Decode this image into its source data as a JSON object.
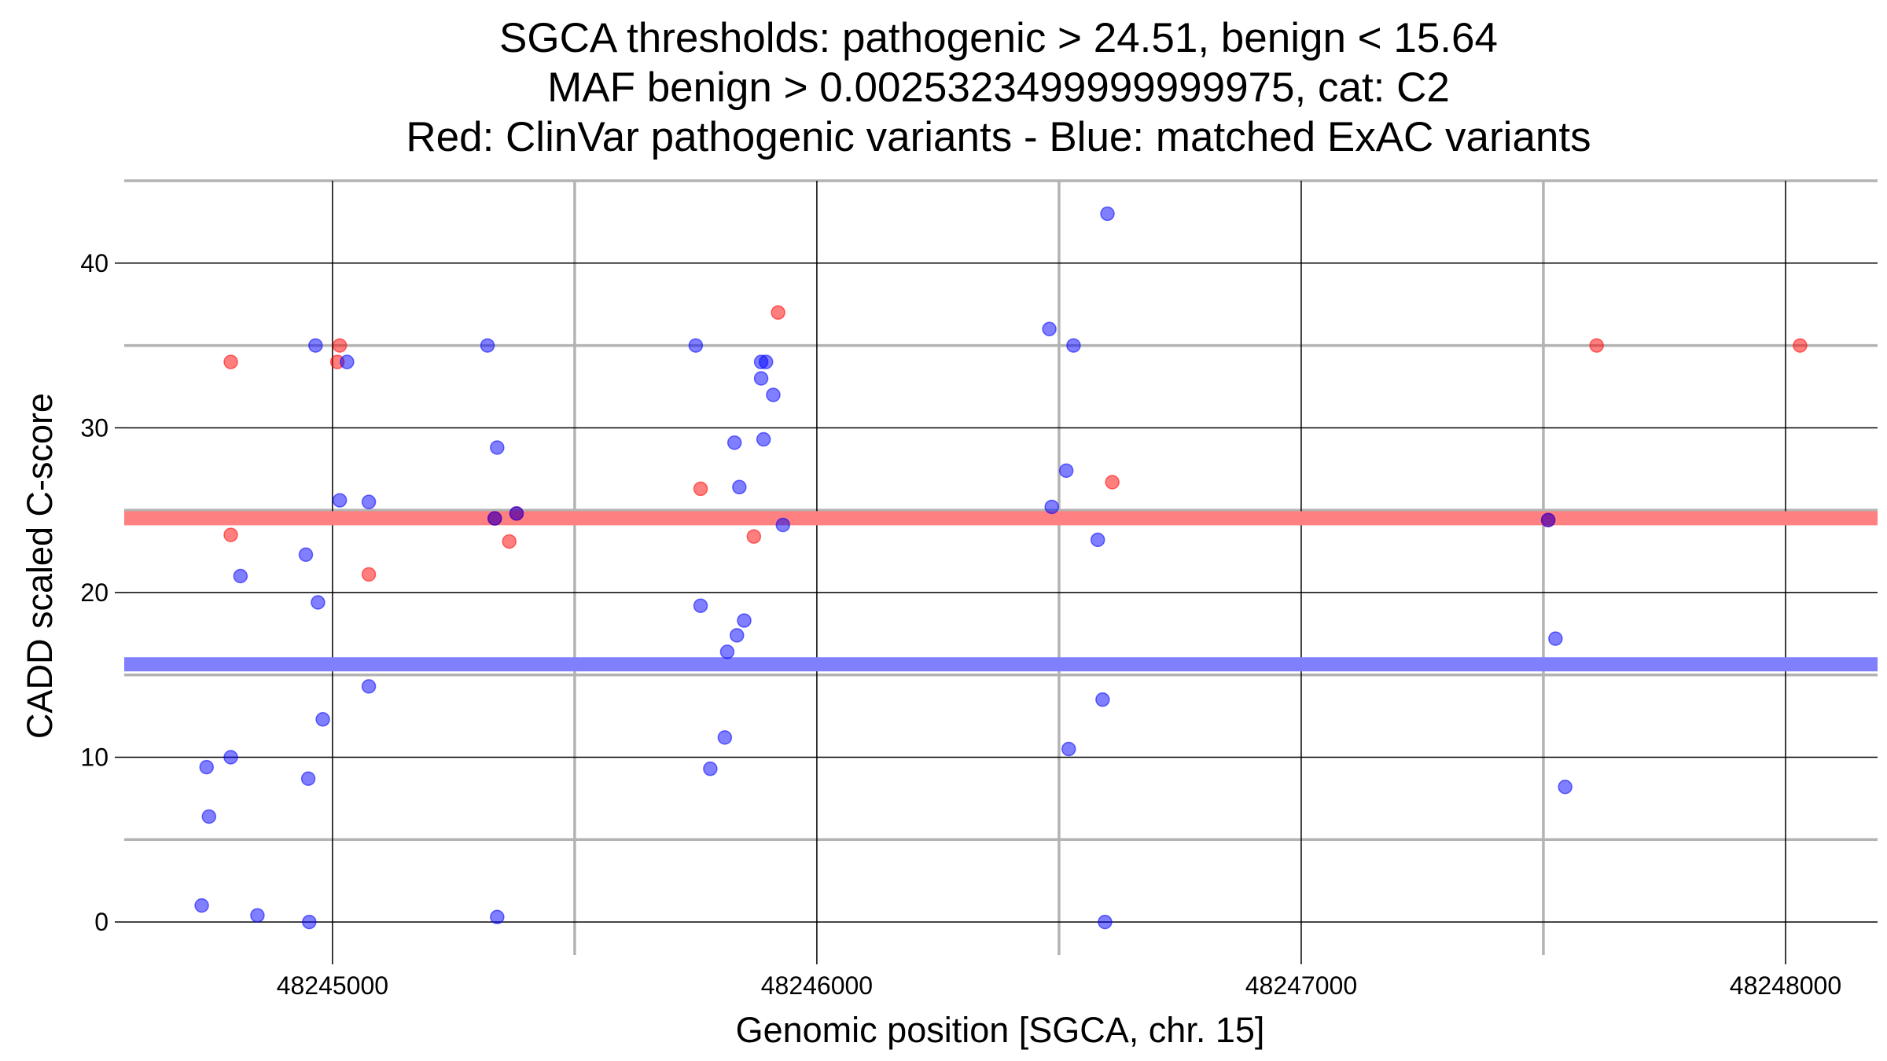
{
  "chart_data": {
    "type": "scatter",
    "title_lines": [
      "SGCA thresholds: pathogenic > 24.51, benign < 15.64",
      "MAF benign > 0.0025323499999999975, cat: C2",
      "Red: ClinVar pathogenic variants - Blue: matched ExAC variants"
    ],
    "xlabel": "Genomic position [SGCA, chr. 15]",
    "ylabel": "CADD scaled C-score",
    "xlim": [
      48244570,
      48248190
    ],
    "ylim": [
      -2,
      45
    ],
    "x_ticks": [
      48245000,
      48246000,
      48247000,
      48248000
    ],
    "x_tick_labels": [
      "48245000",
      "48246000",
      "48247000",
      "48248000"
    ],
    "y_ticks": [
      0,
      10,
      20,
      30,
      40
    ],
    "y_tick_labels": [
      "0",
      "10",
      "20",
      "30",
      "40"
    ],
    "x_minor_ticks": [
      48245500,
      48246500,
      48247500
    ],
    "y_minor_ticks": [
      5,
      15,
      25,
      35
    ],
    "thresholds": {
      "pathogenic": 24.51,
      "benign": 15.64,
      "pathogenic_color": "#ff8080",
      "benign_color": "#8080ff"
    },
    "series": [
      {
        "name": "ClinVar pathogenic variants",
        "color": "#ff0000",
        "points": [
          [
            48244790,
            34
          ],
          [
            48244790,
            23.5
          ],
          [
            48245010,
            34
          ],
          [
            48245015,
            35
          ],
          [
            48245075,
            21.1
          ],
          [
            48245335,
            24.5
          ],
          [
            48245365,
            23.1
          ],
          [
            48245380,
            24.8
          ],
          [
            48245760,
            26.3
          ],
          [
            48245870,
            23.4
          ],
          [
            48245920,
            37
          ],
          [
            48246610,
            26.7
          ],
          [
            48247510,
            24.4
          ],
          [
            48247610,
            35
          ],
          [
            48248030,
            35
          ]
        ]
      },
      {
        "name": "matched ExAC variants",
        "color": "#0000ff",
        "points": [
          [
            48244730,
            1
          ],
          [
            48244740,
            9.4
          ],
          [
            48244745,
            6.4
          ],
          [
            48244790,
            10
          ],
          [
            48244810,
            21
          ],
          [
            48244845,
            0.4
          ],
          [
            48244945,
            22.3
          ],
          [
            48244950,
            8.7
          ],
          [
            48244952,
            0
          ],
          [
            48244965,
            35
          ],
          [
            48244970,
            19.4
          ],
          [
            48244980,
            12.3
          ],
          [
            48245015,
            25.6
          ],
          [
            48245030,
            34
          ],
          [
            48245075,
            25.5
          ],
          [
            48245075,
            14.3
          ],
          [
            48245320,
            35
          ],
          [
            48245335,
            24.5
          ],
          [
            48245340,
            28.8
          ],
          [
            48245340,
            0.3
          ],
          [
            48245380,
            24.8
          ],
          [
            48245750,
            35
          ],
          [
            48245760,
            19.2
          ],
          [
            48245780,
            9.3
          ],
          [
            48245810,
            11.2
          ],
          [
            48245815,
            16.4
          ],
          [
            48245830,
            29.1
          ],
          [
            48245835,
            17.4
          ],
          [
            48245840,
            26.4
          ],
          [
            48245850,
            18.3
          ],
          [
            48245885,
            33
          ],
          [
            48245885,
            34
          ],
          [
            48245890,
            29.3
          ],
          [
            48245895,
            34
          ],
          [
            48245910,
            32
          ],
          [
            48245930,
            24.1
          ],
          [
            48246480,
            36
          ],
          [
            48246485,
            25.2
          ],
          [
            48246515,
            27.4
          ],
          [
            48246520,
            10.5
          ],
          [
            48246530,
            35
          ],
          [
            48246580,
            23.2
          ],
          [
            48246590,
            13.5
          ],
          [
            48246595,
            0
          ],
          [
            48246600,
            43
          ],
          [
            48247510,
            24.4
          ],
          [
            48247525,
            17.2
          ],
          [
            48247545,
            8.2
          ]
        ]
      }
    ]
  }
}
